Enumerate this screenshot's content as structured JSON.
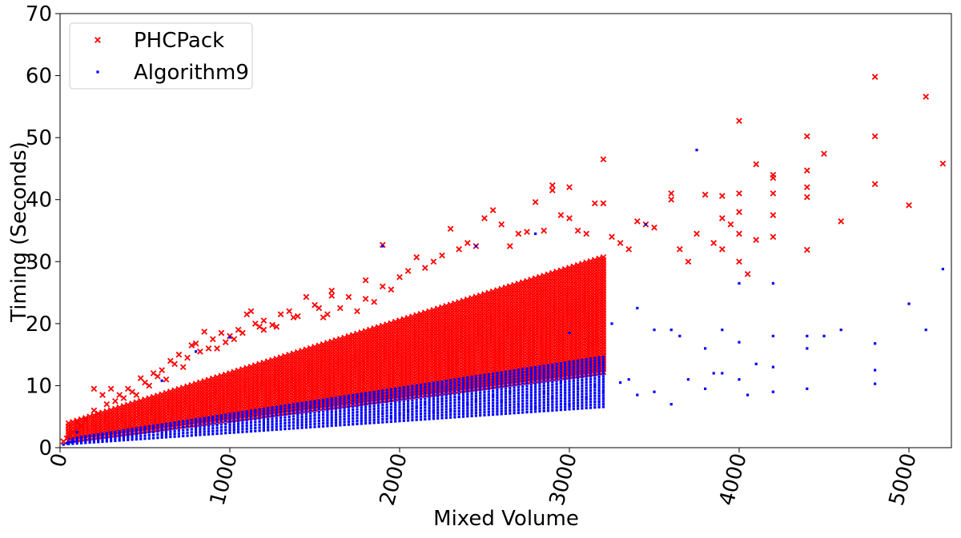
{
  "chart_data": {
    "type": "scatter",
    "title": "",
    "xlabel": "Mixed Volume",
    "ylabel": "Timing (Seconds)",
    "xlim": [
      0,
      5250
    ],
    "ylim": [
      0,
      70
    ],
    "xticks": [
      0,
      1000,
      2000,
      3000,
      4000,
      5000
    ],
    "yticks": [
      0,
      10,
      20,
      30,
      40,
      50,
      60,
      70
    ],
    "xtick_rotation_deg": -75,
    "grid": false,
    "legend_position": "top-left",
    "series": [
      {
        "name": "PHCPack",
        "marker": "x",
        "color": "#ff0000",
        "points": [
          [
            20,
            1.0
          ],
          [
            40,
            1.5
          ],
          [
            60,
            2.0
          ],
          [
            80,
            2.5
          ],
          [
            100,
            3.0
          ],
          [
            100,
            4.2
          ],
          [
            125,
            3.5
          ],
          [
            150,
            4.5
          ],
          [
            175,
            5.0
          ],
          [
            200,
            6.0
          ],
          [
            200,
            9.5
          ],
          [
            225,
            5.5
          ],
          [
            250,
            8.5
          ],
          [
            275,
            7.0
          ],
          [
            300,
            9.5
          ],
          [
            325,
            7.5
          ],
          [
            350,
            8.5
          ],
          [
            375,
            8.0
          ],
          [
            400,
            9.5
          ],
          [
            425,
            9.0
          ],
          [
            450,
            8.5
          ],
          [
            475,
            11.2
          ],
          [
            500,
            10.5
          ],
          [
            525,
            10.0
          ],
          [
            550,
            12.0
          ],
          [
            575,
            11.5
          ],
          [
            600,
            12.5
          ],
          [
            625,
            11.0
          ],
          [
            650,
            14.0
          ],
          [
            675,
            13.5
          ],
          [
            700,
            15.0
          ],
          [
            725,
            13.0
          ],
          [
            750,
            14.5
          ],
          [
            775,
            16.5
          ],
          [
            800,
            16.8
          ],
          [
            825,
            15.5
          ],
          [
            850,
            18.7
          ],
          [
            875,
            16.0
          ],
          [
            900,
            17.5
          ],
          [
            925,
            16.0
          ],
          [
            950,
            18.5
          ],
          [
            975,
            17.0
          ],
          [
            1000,
            18.0
          ],
          [
            1025,
            17.5
          ],
          [
            1050,
            19.0
          ],
          [
            1075,
            18.5
          ],
          [
            1100,
            21.5
          ],
          [
            1125,
            22.0
          ],
          [
            1150,
            20.0
          ],
          [
            1175,
            19.5
          ],
          [
            1200,
            20.5
          ],
          [
            1200,
            19.0
          ],
          [
            1250,
            19.8
          ],
          [
            1275,
            19.5
          ],
          [
            1300,
            21.5
          ],
          [
            1350,
            22.0
          ],
          [
            1375,
            21.0
          ],
          [
            1400,
            21.2
          ],
          [
            1450,
            24.3
          ],
          [
            1500,
            23.0
          ],
          [
            1525,
            22.5
          ],
          [
            1550,
            21.0
          ],
          [
            1575,
            21.5
          ],
          [
            1600,
            25.3
          ],
          [
            1600,
            24.5
          ],
          [
            1650,
            22.5
          ],
          [
            1700,
            24.3
          ],
          [
            1750,
            22.0
          ],
          [
            1800,
            27.0
          ],
          [
            1800,
            24.0
          ],
          [
            1850,
            23.5
          ],
          [
            1900,
            32.7
          ],
          [
            1900,
            26.0
          ],
          [
            1950,
            25.5
          ],
          [
            2000,
            27.5
          ],
          [
            2050,
            28.5
          ],
          [
            2100,
            30.7
          ],
          [
            2150,
            29.0
          ],
          [
            2200,
            30.0
          ],
          [
            2250,
            31.0
          ],
          [
            2300,
            35.3
          ],
          [
            2350,
            32.0
          ],
          [
            2400,
            33.0
          ],
          [
            2450,
            32.5
          ],
          [
            2500,
            37.0
          ],
          [
            2550,
            38.3
          ],
          [
            2600,
            36.0
          ],
          [
            2650,
            32.5
          ],
          [
            2700,
            34.5
          ],
          [
            2750,
            34.8
          ],
          [
            2800,
            39.6
          ],
          [
            2850,
            35.0
          ],
          [
            2900,
            42.3
          ],
          [
            2900,
            41.5
          ],
          [
            2950,
            37.5
          ],
          [
            3000,
            42.0
          ],
          [
            3000,
            37.0
          ],
          [
            3050,
            35.0
          ],
          [
            3100,
            34.5
          ],
          [
            3150,
            39.4
          ],
          [
            3200,
            46.5
          ],
          [
            3200,
            39.4
          ],
          [
            3250,
            34.0
          ],
          [
            3300,
            33.0
          ],
          [
            3350,
            32.0
          ],
          [
            3400,
            36.5
          ],
          [
            3450,
            36.0
          ],
          [
            3500,
            35.5
          ],
          [
            3600,
            41.0
          ],
          [
            3600,
            40.0
          ],
          [
            3650,
            32.0
          ],
          [
            3700,
            30.0
          ],
          [
            3750,
            34.5
          ],
          [
            3800,
            40.8
          ],
          [
            3850,
            33.0
          ],
          [
            3900,
            40.6
          ],
          [
            3900,
            37.0
          ],
          [
            3900,
            32.0
          ],
          [
            3950,
            36.0
          ],
          [
            4000,
            52.7
          ],
          [
            4000,
            41.0
          ],
          [
            4000,
            38.0
          ],
          [
            4000,
            34.5
          ],
          [
            4000,
            30.0
          ],
          [
            4050,
            28.0
          ],
          [
            4100,
            45.7
          ],
          [
            4100,
            33.5
          ],
          [
            4200,
            44.0
          ],
          [
            4200,
            43.5
          ],
          [
            4200,
            41.0
          ],
          [
            4200,
            37.5
          ],
          [
            4200,
            34.0
          ],
          [
            4400,
            50.2
          ],
          [
            4400,
            44.7
          ],
          [
            4400,
            42.0
          ],
          [
            4400,
            40.4
          ],
          [
            4400,
            31.9
          ],
          [
            4500,
            47.4
          ],
          [
            4600,
            36.5
          ],
          [
            4800,
            59.8
          ],
          [
            4800,
            50.2
          ],
          [
            4800,
            42.5
          ],
          [
            5000,
            39.1
          ],
          [
            5100,
            56.6
          ],
          [
            5200,
            45.8
          ]
        ]
      },
      {
        "name": "Algorithm9",
        "marker": ".",
        "color": "#0000ff",
        "points": [
          [
            20,
            0.5
          ],
          [
            40,
            0.7
          ],
          [
            60,
            0.9
          ],
          [
            80,
            1.0
          ],
          [
            100,
            1.2
          ],
          [
            100,
            2.5
          ],
          [
            150,
            1.5
          ],
          [
            200,
            1.8
          ],
          [
            250,
            2.0
          ],
          [
            300,
            2.2
          ],
          [
            350,
            2.4
          ],
          [
            400,
            2.6
          ],
          [
            450,
            2.8
          ],
          [
            500,
            3.0
          ],
          [
            550,
            3.2
          ],
          [
            600,
            3.4
          ],
          [
            600,
            10.8
          ],
          [
            650,
            3.6
          ],
          [
            700,
            3.8
          ],
          [
            750,
            4.0
          ],
          [
            800,
            4.2
          ],
          [
            800,
            15.5
          ],
          [
            850,
            4.5
          ],
          [
            900,
            4.8
          ],
          [
            950,
            5.0
          ],
          [
            1000,
            5.2
          ],
          [
            1000,
            17.8
          ],
          [
            1050,
            5.4
          ],
          [
            1100,
            5.6
          ],
          [
            1150,
            5.8
          ],
          [
            1200,
            6.0
          ],
          [
            1250,
            6.2
          ],
          [
            1300,
            6.4
          ],
          [
            1350,
            6.6
          ],
          [
            1400,
            6.8
          ],
          [
            1450,
            7.0
          ],
          [
            1500,
            7.2
          ],
          [
            1550,
            7.4
          ],
          [
            1600,
            7.6
          ],
          [
            1650,
            7.8
          ],
          [
            1700,
            8.0
          ],
          [
            1750,
            8.2
          ],
          [
            1800,
            8.4
          ],
          [
            1850,
            8.6
          ],
          [
            1900,
            32.5
          ],
          [
            1900,
            5.5
          ],
          [
            1950,
            5.0
          ],
          [
            2000,
            5.5
          ],
          [
            2050,
            6.0
          ],
          [
            2100,
            6.5
          ],
          [
            2150,
            7.0
          ],
          [
            2200,
            5.8
          ],
          [
            2250,
            7.5
          ],
          [
            2300,
            6.0
          ],
          [
            2350,
            8.0
          ],
          [
            2400,
            7.0
          ],
          [
            2450,
            32.5
          ],
          [
            2450,
            7.5
          ],
          [
            2500,
            8.0
          ],
          [
            2550,
            8.5
          ],
          [
            2600,
            7.5
          ],
          [
            2650,
            9.0
          ],
          [
            2700,
            7.0
          ],
          [
            2750,
            8.5
          ],
          [
            2800,
            34.5
          ],
          [
            2800,
            6.5
          ],
          [
            2850,
            9.0
          ],
          [
            2900,
            8.0
          ],
          [
            2950,
            10.5
          ],
          [
            3000,
            18.5
          ],
          [
            3000,
            7.0
          ],
          [
            3050,
            9.5
          ],
          [
            3100,
            8.0
          ],
          [
            3150,
            10.0
          ],
          [
            3200,
            9.0
          ],
          [
            3250,
            20.0
          ],
          [
            3300,
            10.5
          ],
          [
            3350,
            11.0
          ],
          [
            3400,
            22.5
          ],
          [
            3400,
            8.5
          ],
          [
            3450,
            36.0
          ],
          [
            3500,
            19.0
          ],
          [
            3500,
            9.0
          ],
          [
            3600,
            19.0
          ],
          [
            3600,
            7.0
          ],
          [
            3650,
            18.0
          ],
          [
            3700,
            11.0
          ],
          [
            3750,
            48.0
          ],
          [
            3800,
            16.0
          ],
          [
            3800,
            9.5
          ],
          [
            3850,
            12.0
          ],
          [
            3900,
            19.0
          ],
          [
            3900,
            12.0
          ],
          [
            4000,
            26.5
          ],
          [
            4000,
            17.0
          ],
          [
            4000,
            11.0
          ],
          [
            4050,
            8.5
          ],
          [
            4100,
            13.5
          ],
          [
            4200,
            26.5
          ],
          [
            4200,
            18.0
          ],
          [
            4200,
            13.0
          ],
          [
            4200,
            9.0
          ],
          [
            4400,
            18.0
          ],
          [
            4400,
            16.0
          ],
          [
            4400,
            9.5
          ],
          [
            4500,
            18.0
          ],
          [
            4600,
            19.0
          ],
          [
            4800,
            16.8
          ],
          [
            4800,
            12.5
          ],
          [
            4800,
            10.3
          ],
          [
            5000,
            23.2
          ],
          [
            5100,
            19.0
          ],
          [
            5200,
            28.8
          ]
        ]
      }
    ],
    "bands": [
      {
        "series": "PHCPack",
        "x_start": 50,
        "x_end": 3200,
        "x_step": 25,
        "lower_slope": 0.0035,
        "lower_base": 1.0,
        "upper_slope": 0.0085,
        "upper_base": 3.5
      },
      {
        "series": "Algorithm9",
        "x_start": 50,
        "x_end": 3200,
        "x_step": 25,
        "lower_slope": 0.0019,
        "lower_base": 0.5,
        "upper_slope": 0.0042,
        "upper_base": 1.2
      }
    ]
  }
}
